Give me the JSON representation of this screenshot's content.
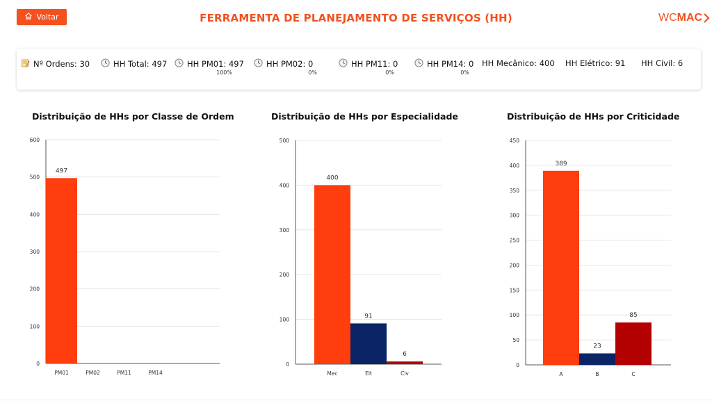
{
  "header": {
    "back_label": "Voltar",
    "title": "FERRAMENTA DE PLANEJAMENTO DE SERVIÇOS (HH)",
    "logo_wc": "WC",
    "logo_mac": "MAC",
    "brand_color": "#f4511e"
  },
  "summary": {
    "orders": "Nº Ordens: 30",
    "hh_total": "HH Total: 497",
    "hh_pm01": "HH PM01: 497",
    "hh_pm01_pct": "100%",
    "hh_pm02": "HH PM02: 0",
    "hh_pm02_pct": "0%",
    "hh_pm11": "HH PM11: 0",
    "hh_pm11_pct": "0%",
    "hh_pm14": "HH PM14: 0",
    "hh_pm14_pct": "0%",
    "hh_mec": "HH Mecânico: 400",
    "hh_ele": "HH Elétrico: 91",
    "hh_civ": "HH Civil: 6",
    "icons": {
      "orders": "notepad-icon",
      "hh": "clock-icon"
    }
  },
  "chart_data": [
    {
      "type": "bar",
      "title": "Distribuição de HHs por Classe de Ordem",
      "categories": [
        "PM01",
        "PM02",
        "PM11",
        "PM14"
      ],
      "values": [
        497,
        0,
        0,
        0
      ],
      "colors": [
        "#ff3d0d",
        "#ff3d0d",
        "#ff3d0d",
        "#ff3d0d"
      ],
      "ylim": [
        0,
        600
      ],
      "yticks": [
        0,
        100,
        200,
        300,
        400,
        500,
        600
      ],
      "data_labels": [
        "497",
        "",
        "",
        ""
      ],
      "grid": true
    },
    {
      "type": "bar",
      "title": "Distribuição de HHs por Especialidade",
      "categories": [
        "Mec",
        "Elt",
        "Civ"
      ],
      "values": [
        400,
        91,
        6
      ],
      "colors": [
        "#ff3d0d",
        "#0b2466",
        "#b30000"
      ],
      "ylim": [
        0,
        500
      ],
      "yticks": [
        0,
        100,
        200,
        300,
        400,
        500
      ],
      "data_labels": [
        "400",
        "91",
        "6"
      ],
      "grid": true
    },
    {
      "type": "bar",
      "title": "Distribuição de HHs por Criticidade",
      "categories": [
        "A",
        "B",
        "C"
      ],
      "values": [
        389,
        23,
        85
      ],
      "colors": [
        "#ff3d0d",
        "#0b2466",
        "#b30000"
      ],
      "ylim": [
        0,
        450
      ],
      "yticks": [
        0,
        50,
        100,
        150,
        200,
        250,
        300,
        350,
        400,
        450
      ],
      "data_labels": [
        "389",
        "23",
        "85"
      ],
      "grid": true
    }
  ]
}
